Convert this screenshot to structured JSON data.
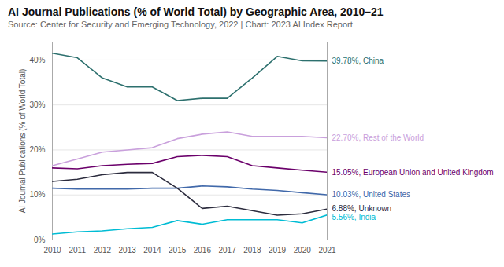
{
  "chart_data": {
    "type": "line",
    "title": "AI Journal Publications (% of World Total) by Geographic Area, 2010–21",
    "subtitle": "Source: Center for Security and Emerging Technology, 2022 | Chart: 2023 AI Index Report",
    "ylabel": "AI Journal Publications (% of World Total)",
    "x": [
      2010,
      2011,
      2012,
      2013,
      2014,
      2015,
      2016,
      2017,
      2018,
      2019,
      2020,
      2021
    ],
    "series": [
      {
        "name": "39.78%, China",
        "color": "#2d706e",
        "values": [
          41.5,
          40.5,
          36.0,
          34.0,
          34.0,
          31.0,
          31.5,
          31.5,
          36.0,
          40.8,
          39.8,
          39.78
        ]
      },
      {
        "name": "22.70%, Rest of the World",
        "color": "#c9a0dc",
        "values": [
          16.5,
          18.0,
          19.5,
          20.0,
          20.5,
          22.5,
          23.5,
          24.0,
          23.0,
          23.0,
          23.0,
          22.7
        ]
      },
      {
        "name": "15.05%, European Union and United Kingdom",
        "color": "#6b006b",
        "values": [
          16.0,
          15.8,
          16.5,
          16.8,
          17.0,
          18.5,
          18.8,
          18.5,
          16.5,
          16.0,
          15.5,
          15.05
        ]
      },
      {
        "name": "10.03%, United States",
        "color": "#4169aa",
        "values": [
          11.5,
          11.3,
          11.3,
          11.3,
          11.5,
          11.5,
          12.0,
          11.8,
          11.3,
          11.0,
          10.5,
          10.03
        ]
      },
      {
        "name": "6.88%, Unknown",
        "color": "#2c2c3e",
        "values": [
          13.0,
          13.5,
          14.5,
          15.0,
          15.0,
          11.5,
          7.0,
          7.5,
          6.5,
          5.5,
          5.8,
          6.88
        ]
      },
      {
        "name": "5.56%, India",
        "color": "#00bcd4",
        "values": [
          1.3,
          1.8,
          2.0,
          2.5,
          2.8,
          4.3,
          3.5,
          4.5,
          4.5,
          4.5,
          3.8,
          5.56
        ]
      }
    ],
    "xlim": [
      2010,
      2021
    ],
    "xticks": [
      2010,
      2011,
      2012,
      2013,
      2014,
      2015,
      2016,
      2017,
      2018,
      2019,
      2020,
      2021
    ],
    "ylim": [
      0,
      44
    ],
    "yticks": [
      {
        "value": 0,
        "label": "0%"
      },
      {
        "value": 10,
        "label": "10%"
      },
      {
        "value": 20,
        "label": "20%"
      },
      {
        "value": 30,
        "label": "30%"
      },
      {
        "value": 40,
        "label": "40%"
      }
    ],
    "grid": true
  }
}
